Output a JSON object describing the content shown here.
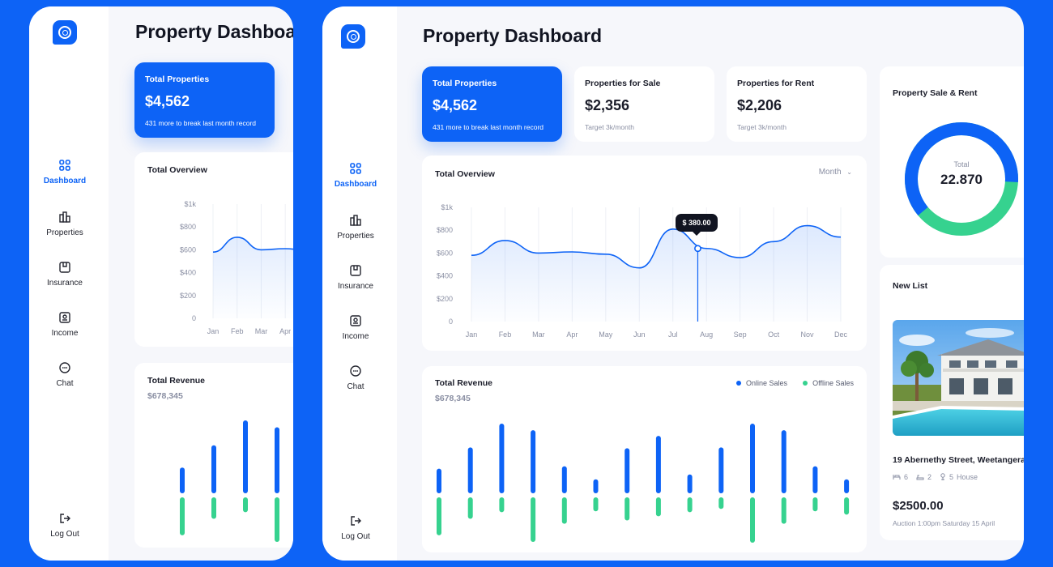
{
  "colors": {
    "brand": "#0d63f6",
    "online": "#0d63f6",
    "offline": "#36d28f"
  },
  "page_title": "Property Dashboard",
  "nav": {
    "dashboard": "Dashboard",
    "properties": "Properties",
    "insurance": "Insurance",
    "income": "Income",
    "chat": "Chat",
    "logout": "Log Out"
  },
  "stats": {
    "total": {
      "label": "Total Properties",
      "value": "$4,562",
      "sub": "431 more to break last month record"
    },
    "sale": {
      "label": "Properties for Sale",
      "value": "$2,356",
      "sub": "Target 3k/month"
    },
    "rent": {
      "label": "Properties for Rent",
      "value": "$2,206",
      "sub": "Target 3k/month"
    }
  },
  "overview": {
    "title": "Total Overview",
    "period": "Month",
    "tooltip": "$ 380.00",
    "y_ticks": [
      "$1k",
      "$800",
      "$600",
      "$400",
      "$200",
      "0"
    ],
    "months": [
      "Jan",
      "Feb",
      "Mar",
      "Apr",
      "May",
      "Jun",
      "Jul",
      "Aug",
      "Sep",
      "Oct",
      "Nov",
      "Dec"
    ]
  },
  "revenue": {
    "title": "Total Revenue",
    "amount": "$678,345",
    "legend_online": "Online Sales",
    "legend_offline": "Offline Sales"
  },
  "donut": {
    "title": "Property Sale & Rent",
    "label": "Total",
    "value": "22.870",
    "sale_share": 0.62
  },
  "new_list": {
    "title": "New List",
    "address": "19 Abernethy Street, Weetangera",
    "beds": "6",
    "baths": "2",
    "type_count": "5",
    "type": "House",
    "price": "$2500.00",
    "auction": "Auction 1:00pm Saturday 15 April"
  },
  "chart_data": [
    {
      "type": "line",
      "title": "Total Overview",
      "x": [
        "Jan",
        "Feb",
        "Mar",
        "Apr",
        "May",
        "Jun",
        "Jul",
        "Aug",
        "Sep",
        "Oct",
        "Nov",
        "Dec"
      ],
      "values": [
        580,
        710,
        600,
        610,
        590,
        470,
        810,
        640,
        560,
        700,
        840,
        740
      ],
      "ylim": [
        0,
        1000
      ]
    },
    {
      "type": "bar",
      "title": "Total Revenue",
      "series": [
        {
          "name": "Online Sales",
          "values": [
            30,
            56,
            85,
            77,
            33,
            17,
            55,
            70,
            23,
            56,
            85,
            77,
            33,
            17
          ]
        },
        {
          "name": "Offline Sales",
          "values": [
            46,
            26,
            18,
            54,
            32,
            17,
            28,
            23,
            18,
            14,
            55,
            32,
            17,
            21
          ]
        }
      ]
    }
  ]
}
